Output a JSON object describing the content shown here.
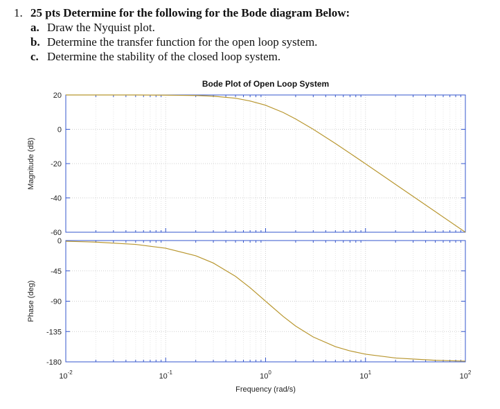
{
  "question": {
    "number": "1.",
    "heading": "25 pts Determine for the following for the Bode diagram Below:",
    "items": [
      {
        "label": "a.",
        "text": "Draw the Nyquist plot."
      },
      {
        "label": "b.",
        "text": "Determine the transfer function for the open loop system."
      },
      {
        "label": "c.",
        "text": "Determine the stability of the closed loop system."
      }
    ]
  },
  "chart_data": [
    {
      "type": "line",
      "title": "Bode Plot of Open Loop System",
      "ylabel": "Magnitude (dB)",
      "x": [
        0.01,
        0.02,
        0.05,
        0.1,
        0.2,
        0.3,
        0.5,
        0.7,
        1,
        1.5,
        2,
        3,
        5,
        7,
        10,
        20,
        50,
        100
      ],
      "values": [
        20.0,
        20.0,
        20.0,
        19.9,
        19.7,
        19.3,
        18.1,
        16.5,
        14.0,
        9.8,
        6.0,
        0.0,
        -8.3,
        -14.0,
        -20.1,
        -32.1,
        -48.0,
        -60.0
      ],
      "color": "#b8962e",
      "log_x": true,
      "grid": true,
      "xlim": [
        0.01,
        100
      ],
      "xticks": [
        0.01,
        0.1,
        1,
        10,
        100
      ],
      "ylim": [
        -60,
        20
      ],
      "yticks": [
        -60,
        -40,
        -20,
        0,
        20
      ]
    },
    {
      "type": "line",
      "ylabel": "Phase (deg)",
      "xlabel": "Frequency (rad/s)",
      "x": [
        0.01,
        0.02,
        0.05,
        0.1,
        0.2,
        0.3,
        0.5,
        0.7,
        1,
        1.5,
        2,
        3,
        5,
        7,
        10,
        20,
        50,
        100
      ],
      "values": [
        -1.1,
        -2.3,
        -5.7,
        -11.4,
        -22.6,
        -33.4,
        -53.1,
        -70.0,
        -90.0,
        -112.6,
        -126.9,
        -143.1,
        -157.4,
        -163.7,
        -168.6,
        -174.3,
        -177.7,
        -178.9
      ],
      "color": "#b8962e",
      "log_x": true,
      "grid": true,
      "xlim": [
        0.01,
        100
      ],
      "xticks": [
        {
          "value": 0.01,
          "label": "10",
          "exponent": "-2"
        },
        {
          "value": 0.1,
          "label": "10",
          "exponent": "-1"
        },
        {
          "value": 1,
          "label": "10",
          "exponent": "0"
        },
        {
          "value": 10,
          "label": "10",
          "exponent": "1"
        },
        {
          "value": 100,
          "label": "10",
          "exponent": "2"
        }
      ],
      "ylim": [
        -180,
        0
      ],
      "yticks": [
        -180,
        -135,
        -90,
        -45,
        0
      ]
    }
  ]
}
